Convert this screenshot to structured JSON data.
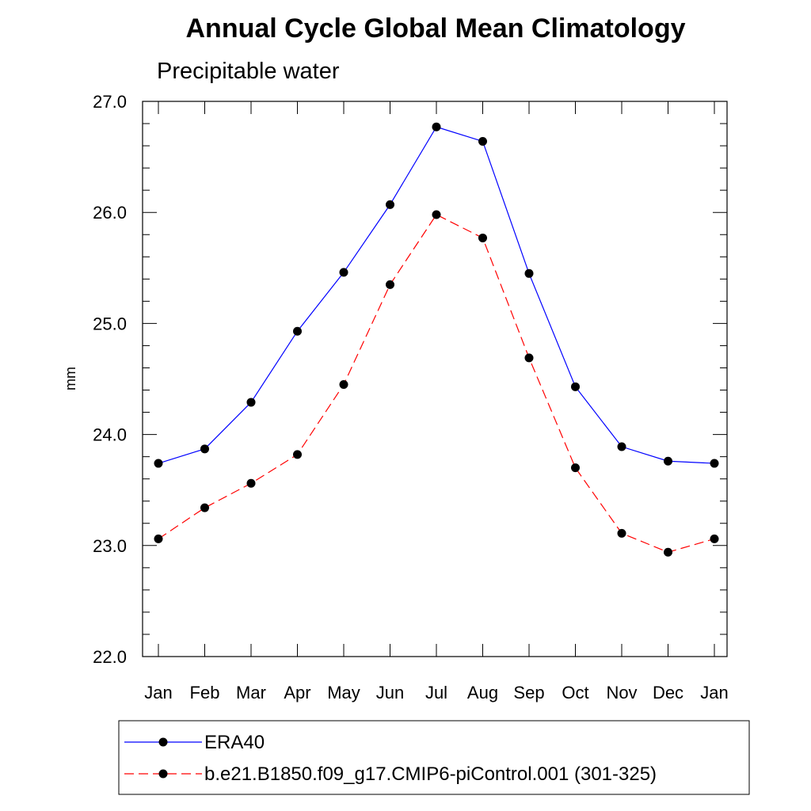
{
  "chart_data": {
    "type": "line",
    "title": "Annual Cycle Global Mean Climatology",
    "subtitle": "Precipitable water",
    "xlabel": "",
    "ylabel": "mm",
    "ylim": [
      22.0,
      27.0
    ],
    "yticks": [
      "22.0",
      "23.0",
      "24.0",
      "25.0",
      "26.0",
      "27.0"
    ],
    "categories": [
      "Jan",
      "Feb",
      "Mar",
      "Apr",
      "May",
      "Jun",
      "Jul",
      "Aug",
      "Sep",
      "Oct",
      "Nov",
      "Dec",
      "Jan"
    ],
    "grid": false,
    "legend_position": "bottom",
    "series": [
      {
        "name": "ERA40",
        "color": "#0000ff",
        "line_style": "solid",
        "marker": "filled-circle",
        "values": [
          23.74,
          23.87,
          24.29,
          24.93,
          25.46,
          26.07,
          26.77,
          26.64,
          25.45,
          24.43,
          23.89,
          23.76,
          23.74
        ]
      },
      {
        "name": "b.e21.B1850.f09_g17.CMIP6-piControl.001 (301-325)",
        "color": "#ff0000",
        "line_style": "dashed",
        "marker": "filled-circle",
        "values": [
          23.06,
          23.34,
          23.56,
          23.82,
          24.45,
          25.35,
          25.98,
          25.77,
          24.69,
          23.7,
          23.11,
          22.94,
          23.06
        ]
      }
    ]
  }
}
